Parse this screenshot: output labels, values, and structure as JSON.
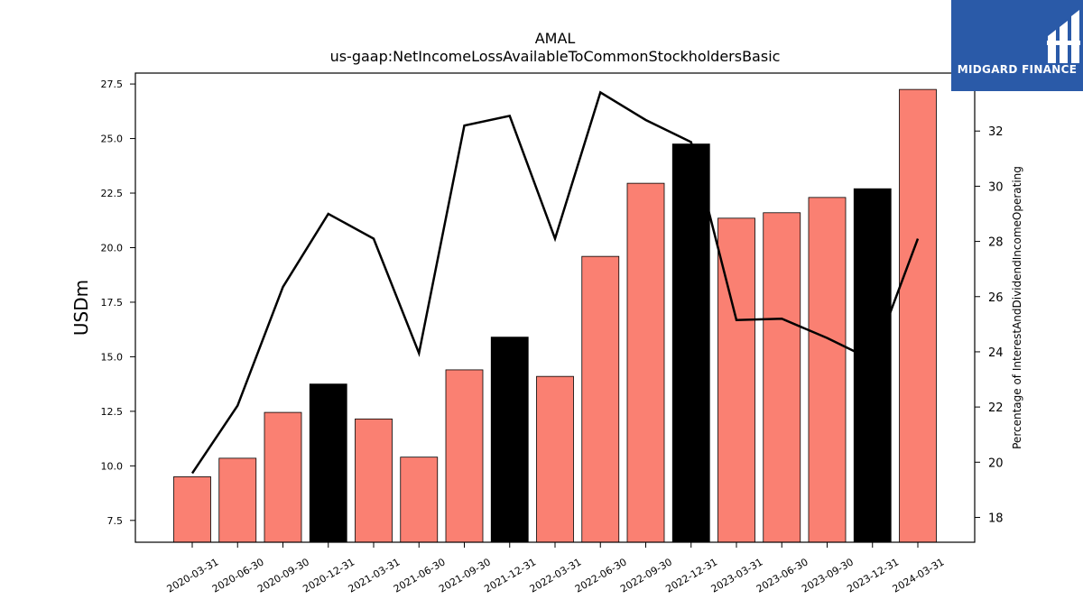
{
  "logo": {
    "text": "MIDGARD FINANCE",
    "background": "#2a5aa8"
  },
  "chart_data": {
    "type": "bar",
    "title": "AMAL",
    "subtitle": "us-gaap:NetIncomeLossAvailableToCommonStockholdersBasic",
    "ylabel": "USDm",
    "y2label": "Percentage of InterestAndDividendIncomeOperating",
    "ylim": [
      6.5,
      28.0
    ],
    "y2lim": [
      17.1,
      34.1
    ],
    "yticks": [
      7.5,
      10.0,
      12.5,
      15.0,
      17.5,
      20.0,
      22.5,
      25.0,
      27.5
    ],
    "y2ticks": [
      18,
      20,
      22,
      24,
      26,
      28,
      30,
      32
    ],
    "categories": [
      "2020-03-31",
      "2020-06-30",
      "2020-09-30",
      "2020-12-31",
      "2021-03-31",
      "2021-06-30",
      "2021-09-30",
      "2021-12-31",
      "2022-03-31",
      "2022-06-30",
      "2022-09-30",
      "2022-12-31",
      "2023-03-31",
      "2023-06-30",
      "2023-09-30",
      "2023-12-31",
      "2024-03-31"
    ],
    "series": [
      {
        "type": "bar",
        "axis": "left",
        "values": [
          9.5,
          10.35,
          12.45,
          13.75,
          12.15,
          10.4,
          14.4,
          15.9,
          14.1,
          19.6,
          22.95,
          24.75,
          21.35,
          21.6,
          22.3,
          22.7,
          27.25
        ],
        "colors": [
          "#fa8072",
          "#fa8072",
          "#fa8072",
          "#000000",
          "#fa8072",
          "#fa8072",
          "#fa8072",
          "#000000",
          "#fa8072",
          "#fa8072",
          "#fa8072",
          "#000000",
          "#fa8072",
          "#fa8072",
          "#fa8072",
          "#000000",
          "#fa8072"
        ]
      },
      {
        "type": "line",
        "axis": "right",
        "color": "#000000",
        "values": [
          19.6,
          22.05,
          26.35,
          29.0,
          28.1,
          23.95,
          32.2,
          32.55,
          28.1,
          33.4,
          32.4,
          31.6,
          25.15,
          25.2,
          24.5,
          23.7,
          28.1
        ]
      }
    ],
    "grid": false,
    "legend": "none"
  }
}
